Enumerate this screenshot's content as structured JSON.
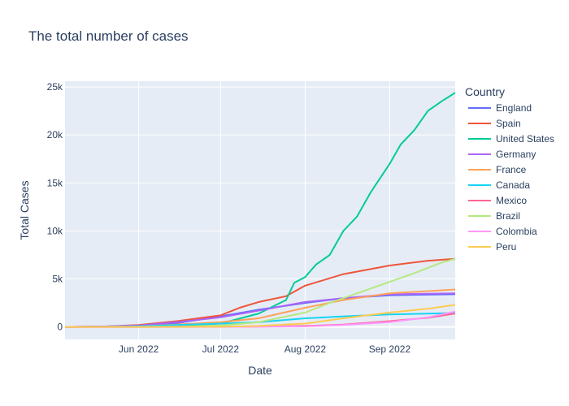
{
  "chart_data": {
    "type": "line",
    "title": "The total number of cases",
    "xlabel": "Date",
    "ylabel": "Total Cases",
    "x_range": [
      "2022-05-05",
      "2022-09-25"
    ],
    "ylim": [
      -1300,
      25600
    ],
    "x_ticks": [
      {
        "date": "2022-06-01",
        "label": "Jun 2022"
      },
      {
        "date": "2022-07-01",
        "label": "Jul 2022"
      },
      {
        "date": "2022-08-01",
        "label": "Aug 2022"
      },
      {
        "date": "2022-09-01",
        "label": "Sep 2022"
      }
    ],
    "y_ticks": [
      {
        "value": 0,
        "label": "0"
      },
      {
        "value": 5000,
        "label": "5k"
      },
      {
        "value": 10000,
        "label": "10k"
      },
      {
        "value": 15000,
        "label": "15k"
      },
      {
        "value": 20000,
        "label": "20k"
      },
      {
        "value": 25000,
        "label": "25k"
      }
    ],
    "grid": true,
    "legend_title": "Country",
    "legend_position": "right",
    "series": [
      {
        "name": "England",
        "color": "#636efa",
        "points": [
          [
            "2022-05-05",
            0
          ],
          [
            "2022-05-20",
            50
          ],
          [
            "2022-06-01",
            150
          ],
          [
            "2022-06-15",
            400
          ],
          [
            "2022-07-01",
            1100
          ],
          [
            "2022-07-15",
            1800
          ],
          [
            "2022-08-01",
            2500
          ],
          [
            "2022-08-15",
            3000
          ],
          [
            "2022-09-01",
            3300
          ],
          [
            "2022-09-25",
            3400
          ]
        ]
      },
      {
        "name": "Spain",
        "color": "#ef553b",
        "points": [
          [
            "2022-05-05",
            0
          ],
          [
            "2022-05-20",
            50
          ],
          [
            "2022-06-01",
            200
          ],
          [
            "2022-06-15",
            600
          ],
          [
            "2022-07-01",
            1200
          ],
          [
            "2022-07-08",
            2000
          ],
          [
            "2022-07-15",
            2600
          ],
          [
            "2022-07-25",
            3200
          ],
          [
            "2022-08-01",
            4300
          ],
          [
            "2022-08-15",
            5500
          ],
          [
            "2022-09-01",
            6400
          ],
          [
            "2022-09-15",
            6900
          ],
          [
            "2022-09-25",
            7100
          ]
        ]
      },
      {
        "name": "United States",
        "color": "#00cc96",
        "points": [
          [
            "2022-05-05",
            0
          ],
          [
            "2022-06-01",
            30
          ],
          [
            "2022-06-15",
            100
          ],
          [
            "2022-07-01",
            350
          ],
          [
            "2022-07-15",
            1400
          ],
          [
            "2022-07-25",
            2800
          ],
          [
            "2022-07-28",
            4600
          ],
          [
            "2022-08-01",
            5200
          ],
          [
            "2022-08-05",
            6500
          ],
          [
            "2022-08-10",
            7500
          ],
          [
            "2022-08-15",
            10000
          ],
          [
            "2022-08-20",
            11500
          ],
          [
            "2022-08-25",
            14000
          ],
          [
            "2022-09-01",
            17000
          ],
          [
            "2022-09-05",
            19000
          ],
          [
            "2022-09-10",
            20500
          ],
          [
            "2022-09-15",
            22500
          ],
          [
            "2022-09-20",
            23500
          ],
          [
            "2022-09-25",
            24400
          ]
        ]
      },
      {
        "name": "Germany",
        "color": "#ab63fa",
        "points": [
          [
            "2022-05-05",
            0
          ],
          [
            "2022-05-20",
            50
          ],
          [
            "2022-06-01",
            150
          ],
          [
            "2022-06-15",
            500
          ],
          [
            "2022-07-01",
            1000
          ],
          [
            "2022-07-15",
            1700
          ],
          [
            "2022-08-01",
            2600
          ],
          [
            "2022-08-15",
            3000
          ],
          [
            "2022-09-01",
            3400
          ],
          [
            "2022-09-25",
            3500
          ]
        ]
      },
      {
        "name": "France",
        "color": "#ffa15a",
        "points": [
          [
            "2022-05-05",
            0
          ],
          [
            "2022-05-20",
            20
          ],
          [
            "2022-06-01",
            80
          ],
          [
            "2022-06-15",
            250
          ],
          [
            "2022-07-01",
            500
          ],
          [
            "2022-07-15",
            900
          ],
          [
            "2022-08-01",
            2000
          ],
          [
            "2022-08-15",
            2800
          ],
          [
            "2022-09-01",
            3500
          ],
          [
            "2022-09-25",
            3900
          ]
        ]
      },
      {
        "name": "Canada",
        "color": "#19d3f3",
        "points": [
          [
            "2022-05-05",
            0
          ],
          [
            "2022-05-20",
            20
          ],
          [
            "2022-06-01",
            80
          ],
          [
            "2022-06-15",
            200
          ],
          [
            "2022-07-01",
            350
          ],
          [
            "2022-07-15",
            500
          ],
          [
            "2022-08-01",
            900
          ],
          [
            "2022-08-15",
            1100
          ],
          [
            "2022-09-01",
            1300
          ],
          [
            "2022-09-25",
            1450
          ]
        ]
      },
      {
        "name": "Mexico",
        "color": "#ff6692",
        "points": [
          [
            "2022-05-05",
            0
          ],
          [
            "2022-06-01",
            0
          ],
          [
            "2022-07-01",
            10
          ],
          [
            "2022-07-15",
            30
          ],
          [
            "2022-08-01",
            100
          ],
          [
            "2022-08-15",
            250
          ],
          [
            "2022-09-01",
            600
          ],
          [
            "2022-09-15",
            950
          ],
          [
            "2022-09-25",
            1400
          ]
        ]
      },
      {
        "name": "Brazil",
        "color": "#b6e880",
        "points": [
          [
            "2022-05-05",
            0
          ],
          [
            "2022-06-01",
            10
          ],
          [
            "2022-06-15",
            40
          ],
          [
            "2022-07-01",
            150
          ],
          [
            "2022-07-15",
            500
          ],
          [
            "2022-08-01",
            1500
          ],
          [
            "2022-08-10",
            2500
          ],
          [
            "2022-08-20",
            3500
          ],
          [
            "2022-09-01",
            4700
          ],
          [
            "2022-09-10",
            5600
          ],
          [
            "2022-09-20",
            6700
          ],
          [
            "2022-09-25",
            7100
          ]
        ]
      },
      {
        "name": "Colombia",
        "color": "#ff97ff",
        "points": [
          [
            "2022-05-05",
            0
          ],
          [
            "2022-06-01",
            0
          ],
          [
            "2022-07-01",
            0
          ],
          [
            "2022-08-01",
            50
          ],
          [
            "2022-08-15",
            200
          ],
          [
            "2022-09-01",
            500
          ],
          [
            "2022-09-15",
            1000
          ],
          [
            "2022-09-25",
            1600
          ]
        ]
      },
      {
        "name": "Peru",
        "color": "#fecb52",
        "points": [
          [
            "2022-05-05",
            0
          ],
          [
            "2022-06-01",
            0
          ],
          [
            "2022-07-01",
            20
          ],
          [
            "2022-07-15",
            100
          ],
          [
            "2022-08-01",
            350
          ],
          [
            "2022-08-15",
            900
          ],
          [
            "2022-09-01",
            1500
          ],
          [
            "2022-09-15",
            1900
          ],
          [
            "2022-09-25",
            2300
          ]
        ]
      }
    ]
  }
}
